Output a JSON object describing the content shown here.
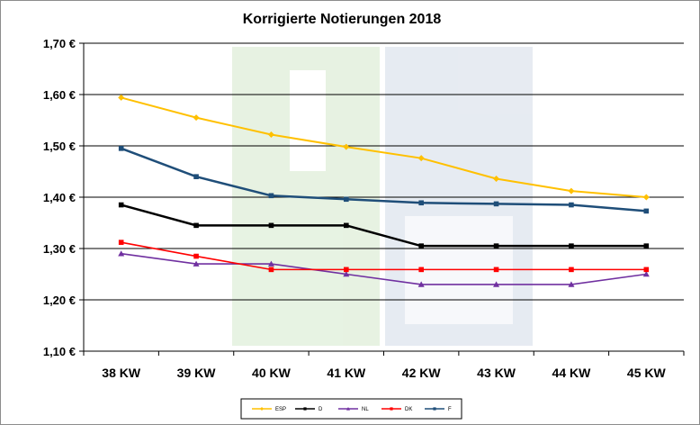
{
  "chart_data": {
    "type": "line",
    "title": "Korrigierte Notierungen 2018",
    "xlabel": "",
    "ylabel": "",
    "categories": [
      "38 KW",
      "39 KW",
      "40 KW",
      "41 KW",
      "42 KW",
      "43 KW",
      "44 KW",
      "45 KW"
    ],
    "ylim": [
      1.1,
      1.7
    ],
    "ytick_labels": [
      "1,10 €",
      "1,20 €",
      "1,30 €",
      "1,40 €",
      "1,50 €",
      "1,60 €",
      "1,70 €"
    ],
    "ytick_values": [
      1.1,
      1.2,
      1.3,
      1.4,
      1.5,
      1.6,
      1.7
    ],
    "grid": true,
    "legend_position": "bottom",
    "series": [
      {
        "name": "ESP",
        "color": "#FFC000",
        "marker": "diamond",
        "values": [
          1.594,
          1.555,
          1.522,
          1.498,
          1.476,
          1.436,
          1.412,
          1.4
        ]
      },
      {
        "name": "D",
        "color": "#000000",
        "marker": "square",
        "values": [
          1.385,
          1.345,
          1.345,
          1.345,
          1.305,
          1.305,
          1.305,
          1.305
        ]
      },
      {
        "name": "NL",
        "color": "#7030A0",
        "marker": "triangle",
        "values": [
          1.29,
          1.27,
          1.27,
          1.25,
          1.23,
          1.23,
          1.23,
          1.25
        ]
      },
      {
        "name": "DK",
        "color": "#FF0000",
        "marker": "square",
        "values": [
          1.312,
          1.285,
          1.259,
          1.259,
          1.259,
          1.259,
          1.259,
          1.259
        ]
      },
      {
        "name": "F",
        "color": "#1F4E79",
        "marker": "square",
        "values": [
          1.495,
          1.44,
          1.403,
          1.396,
          1.389,
          1.387,
          1.385,
          1.373
        ]
      }
    ]
  }
}
